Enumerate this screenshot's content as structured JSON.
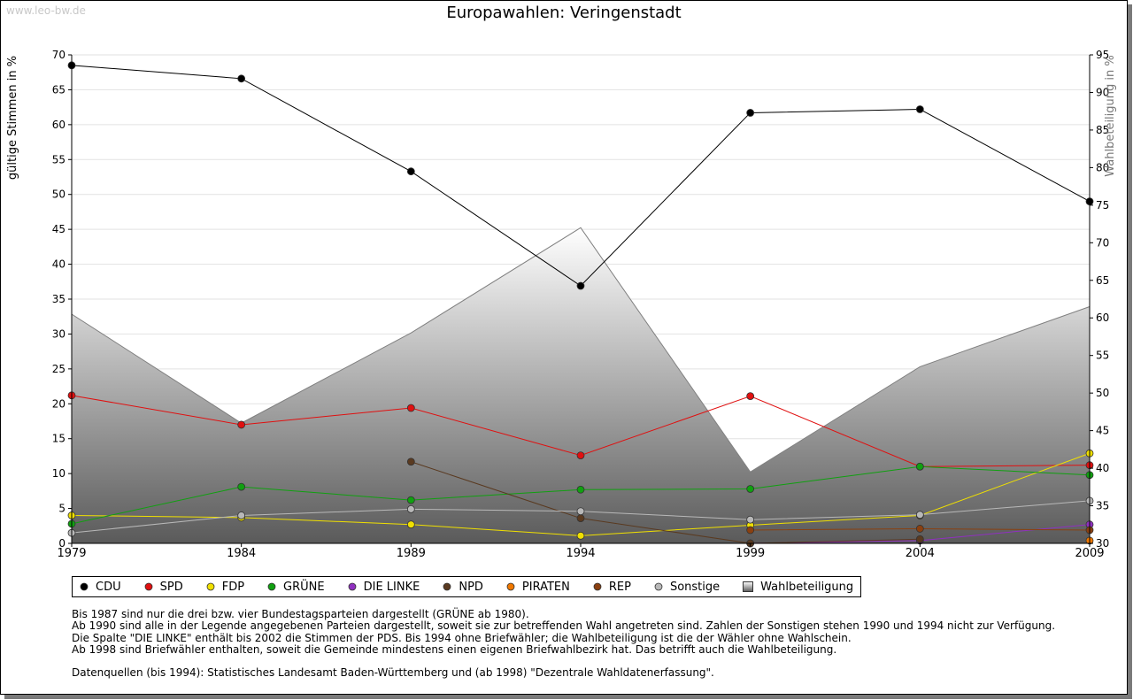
{
  "watermark": "www.leo-bw.de",
  "chart_data": {
    "type": "line",
    "title": "Europawahlen: Veringenstadt",
    "xlabel": "",
    "ylabel": "gültige Stimmen in %",
    "y2label": "Wahlbeteiligung in %",
    "ylim": [
      0,
      70
    ],
    "y2lim": [
      30,
      95
    ],
    "yticks": [
      "0",
      "5",
      "10",
      "15",
      "20",
      "25",
      "30",
      "35",
      "40",
      "45",
      "50",
      "55",
      "60",
      "65",
      "70"
    ],
    "y2ticks": [
      "30",
      "35",
      "40",
      "45",
      "50",
      "55",
      "60",
      "65",
      "70",
      "75",
      "80",
      "85",
      "90",
      "95"
    ],
    "categories": [
      "1979",
      "1984",
      "1989",
      "1994",
      "1999",
      "2004",
      "2009"
    ],
    "series": [
      {
        "name": "CDU",
        "color": "#000000",
        "values": [
          68.5,
          66.6,
          53.3,
          36.9,
          61.7,
          62.2,
          49.0
        ]
      },
      {
        "name": "SPD",
        "color": "#e01010",
        "values": [
          21.2,
          17.0,
          19.4,
          12.6,
          21.1,
          11.0,
          11.2
        ]
      },
      {
        "name": "FDP",
        "color": "#f0e000",
        "values": [
          4.0,
          3.7,
          2.7,
          1.1,
          2.6,
          4.0,
          12.9
        ]
      },
      {
        "name": "GRÜNE",
        "color": "#10a010",
        "values": [
          2.8,
          8.1,
          6.2,
          7.7,
          7.8,
          11.0,
          9.8
        ]
      },
      {
        "name": "DIE LINKE",
        "color": "#9030c0",
        "values": [
          null,
          null,
          null,
          null,
          0.0,
          0.4,
          2.7
        ]
      },
      {
        "name": "NPD",
        "color": "#5a3a20",
        "values": [
          null,
          null,
          11.7,
          3.6,
          0.0,
          0.6,
          null
        ]
      },
      {
        "name": "PIRATEN",
        "color": "#f07800",
        "values": [
          null,
          null,
          null,
          null,
          null,
          null,
          0.4
        ]
      },
      {
        "name": "REP",
        "color": "#8a4010",
        "values": [
          null,
          null,
          null,
          null,
          1.9,
          2.1,
          1.9
        ]
      },
      {
        "name": "Sonstige",
        "color": "#b8b8b8",
        "values": [
          1.5,
          4.0,
          4.9,
          4.6,
          3.4,
          4.1,
          6.1
        ]
      }
    ],
    "turnout": {
      "name": "Wahlbeteiligung",
      "values": [
        60.5,
        46.0,
        58.0,
        72.0,
        39.5,
        53.5,
        61.5
      ]
    }
  },
  "notes": [
    "Bis 1987 sind nur die drei bzw. vier Bundestagsparteien dargestellt (GRÜNE ab 1980).",
    "Ab 1990 sind alle in der Legende angegebenen Parteien dargestellt, soweit sie zur betreffenden Wahl angetreten sind. Zahlen der Sonstigen stehen 1990 und 1994 nicht zur Verfügung.",
    "Die Spalte \"DIE LINKE\" enthält bis 2002 die Stimmen der PDS. Bis 1994 ohne Briefwähler; die Wahlbeteiligung ist die der Wähler ohne Wahlschein.",
    "Ab 1998 sind Briefwähler enthalten, soweit die Gemeinde mindestens einen eigenen Briefwahlbezirk hat. Das betrifft auch die Wahlbeteiligung."
  ],
  "source": "Datenquellen (bis 1994): Statistisches Landesamt Baden-Württemberg und (ab 1998) \"Dezentrale Wahldatenerfassung\"."
}
